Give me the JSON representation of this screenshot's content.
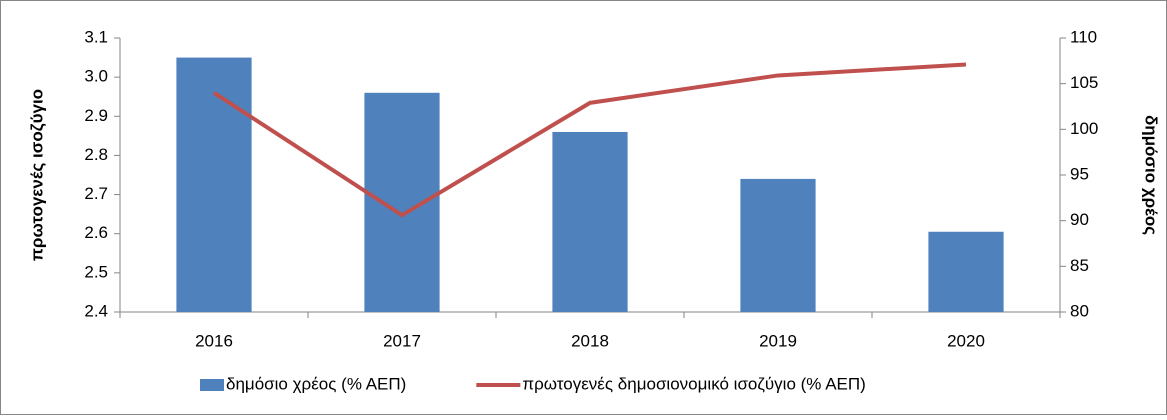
{
  "chart_data": {
    "type": "bar-line",
    "y_label": "πρωτογενές ισοζύγιο",
    "y2_label": "δημόσιο χρέος",
    "categories": [
      "2016",
      "2017",
      "2018",
      "2019",
      "2020"
    ],
    "series": [
      {
        "name": "δημόσιο χρέος (% ΑΕΠ)",
        "type": "bar",
        "color": "#4f81bd",
        "values": [
          3.05,
          2.96,
          2.86,
          2.74,
          2.605
        ]
      },
      {
        "name": "πρωτογενές δημοσιονομικό ισοζύγιο (% ΑΕΠ)",
        "type": "line",
        "axis": "y2",
        "color": "#c0504d",
        "values": [
          104.0,
          90.6,
          102.9,
          105.9,
          107.1
        ]
      }
    ],
    "ylim": [
      2.4,
      3.1
    ],
    "yticks": [
      2.4,
      2.5,
      2.6,
      2.7,
      2.8,
      2.9,
      {
        "value": 3.0,
        "label": "3.0"
      },
      3.1
    ],
    "y2lim": [
      80,
      110
    ],
    "y2ticks": [
      80,
      85,
      90,
      95,
      100,
      105,
      110
    ]
  }
}
